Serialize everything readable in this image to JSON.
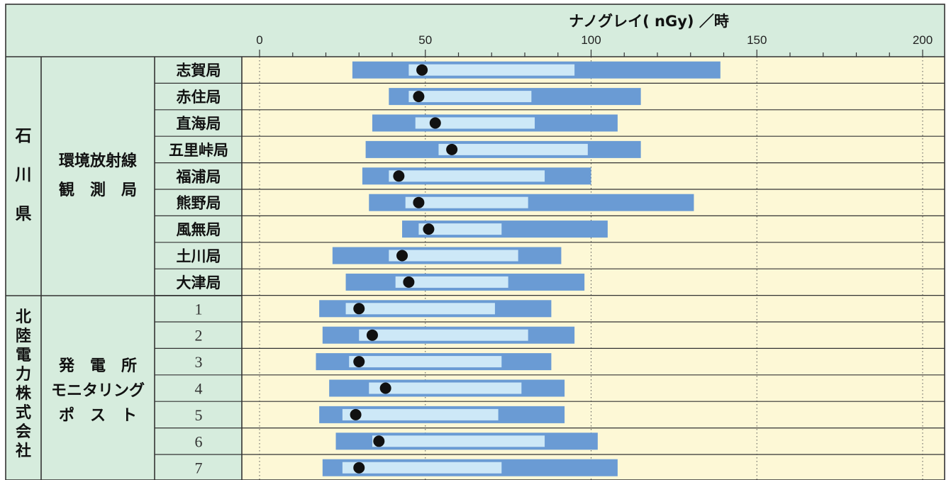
{
  "header": {
    "unit_title": "ナノグレイ( nGy) ／時"
  },
  "groups": {
    "ishikawa": {
      "label_chars": [
        "石",
        "川",
        "県"
      ],
      "sub_lines": [
        "環境放射線",
        "観　測　局"
      ]
    },
    "hokuriku": {
      "label_chars": [
        "北",
        "陸",
        "電",
        "力",
        "株",
        "式",
        "会",
        "社"
      ],
      "sub_lines": [
        "発　電　所",
        "モニタリング",
        "ポ　ス　ト"
      ]
    }
  },
  "chart_data": {
    "type": "bar",
    "xlabel": "ナノグレイ( nGy) ／時",
    "xlim": [
      0,
      200
    ],
    "xticks": [
      "0",
      "50",
      "100",
      "150",
      "200"
    ],
    "grid": "dotted vertical at major ticks",
    "categories": [
      "志賀局",
      "赤住局",
      "直海局",
      "五里峠局",
      "福浦局",
      "熊野局",
      "風無局",
      "土川局",
      "大津局",
      "1",
      "2",
      "3",
      "4",
      "5",
      "6",
      "7"
    ],
    "series": [
      {
        "min": [
          28,
          39,
          34,
          32,
          31,
          33,
          43,
          22,
          26,
          18,
          19,
          17,
          21,
          18,
          23,
          19
        ],
        "max": [
          139,
          115,
          108,
          115,
          100,
          131,
          105,
          91,
          98,
          88,
          95,
          88,
          92,
          92,
          102,
          108
        ],
        "inner_low": [
          45,
          45,
          47,
          54,
          39,
          44,
          48,
          39,
          41,
          26,
          30,
          27,
          33,
          25,
          34,
          25
        ],
        "inner_high": [
          95,
          82,
          83,
          99,
          86,
          81,
          73,
          78,
          75,
          71,
          81,
          73,
          79,
          72,
          86,
          73
        ],
        "mean": [
          49,
          48,
          53,
          58,
          42,
          48,
          51,
          43,
          45,
          30,
          34,
          30,
          38,
          29,
          36,
          30
        ]
      }
    ],
    "colors": {
      "range": "#6a9bd4",
      "inner": "#cde8f7",
      "mean": "#111111",
      "plot_bg": "#fdf8d6",
      "label_bg": "#d6ecdd",
      "border": "#333333"
    }
  }
}
